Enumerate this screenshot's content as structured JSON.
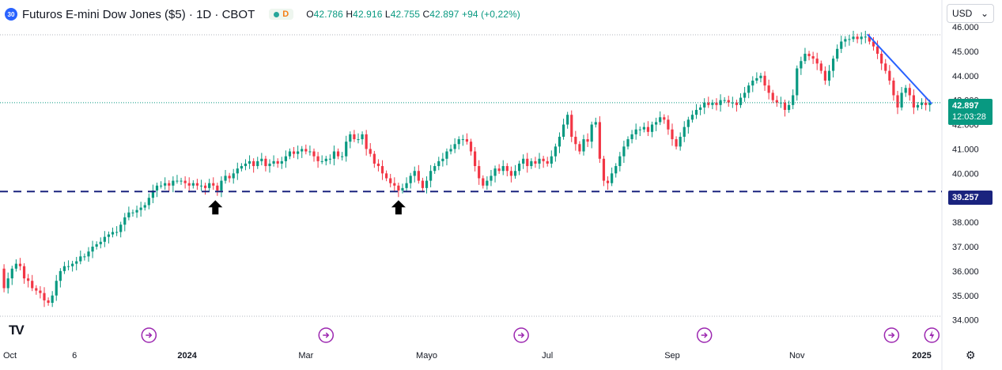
{
  "header": {
    "badge": "30",
    "title": "Futuros E-mini Dow Jones ($5) · 1D · CBOT",
    "session_badge": "D",
    "ohlc": {
      "o_label": "O",
      "o": "42.786",
      "h_label": "H",
      "h": "42.916",
      "l_label": "L",
      "l": "42.755",
      "c_label": "C",
      "c": "42.897",
      "change": "+94 (+0,22%)"
    }
  },
  "currency": {
    "value": "USD",
    "icon": "chevron-down-icon"
  },
  "price_tags": {
    "last_price": "42.897",
    "countdown": "12:03:28",
    "level": "39.257"
  },
  "logo": "TV",
  "colors": {
    "up": "#089981",
    "down": "#f23645",
    "trendline": "#2962ff",
    "support": "#1a237e",
    "event": "#9c27b0",
    "grid_dotted": "#089981"
  },
  "chart_data": {
    "type": "candlestick",
    "title": "Futuros E-mini Dow Jones ($5)",
    "interval": "1D",
    "ylim": [
      33600,
      46000
    ],
    "y_ticks": [
      "46.000",
      "45.000",
      "44.000",
      "43.000",
      "42.000",
      "41.000",
      "40.000",
      "39.000",
      "38.000",
      "37.000",
      "36.000",
      "35.000",
      "34.000"
    ],
    "x_labels": [
      {
        "label": "Oct",
        "x": 0
      },
      {
        "label": "6",
        "x": 37
      },
      {
        "label": "2024",
        "x": 93
      },
      {
        "label": "Mar",
        "x": 152
      },
      {
        "label": "Mayo",
        "x": 212
      },
      {
        "label": "Jul",
        "x": 272
      },
      {
        "label": "Sep",
        "x": 334
      },
      {
        "label": "Nov",
        "x": 396
      },
      {
        "label": "2025",
        "x": 458
      }
    ],
    "x_range": [
      0,
      468
    ],
    "last_price": 42897,
    "support_level": 39257,
    "trendline": [
      [
        431,
        45700
      ],
      [
        463,
        42850
      ]
    ],
    "arrows": [
      {
        "x": 107,
        "y": 38900
      },
      {
        "x": 198,
        "y": 38900
      }
    ],
    "event_markers": [
      74,
      162,
      259,
      350,
      443
    ],
    "special_marker": 463,
    "close_path": [
      [
        0,
        36100
      ],
      [
        2,
        35300
      ],
      [
        4,
        35700
      ],
      [
        6,
        36100
      ],
      [
        8,
        36300
      ],
      [
        10,
        36200
      ],
      [
        12,
        35700
      ],
      [
        14,
        35600
      ],
      [
        16,
        35300
      ],
      [
        18,
        35200
      ],
      [
        20,
        35100
      ],
      [
        22,
        34800
      ],
      [
        24,
        34700
      ],
      [
        26,
        35000
      ],
      [
        28,
        35600
      ],
      [
        30,
        36000
      ],
      [
        32,
        36200
      ],
      [
        34,
        36200
      ],
      [
        36,
        36300
      ],
      [
        38,
        36400
      ],
      [
        40,
        36600
      ],
      [
        42,
        36600
      ],
      [
        44,
        36800
      ],
      [
        46,
        37000
      ],
      [
        48,
        37100
      ],
      [
        50,
        37200
      ],
      [
        52,
        37400
      ],
      [
        54,
        37500
      ],
      [
        56,
        37600
      ],
      [
        58,
        37600
      ],
      [
        60,
        37900
      ],
      [
        62,
        38200
      ],
      [
        64,
        38400
      ],
      [
        66,
        38400
      ],
      [
        68,
        38500
      ],
      [
        70,
        38600
      ],
      [
        72,
        38700
      ],
      [
        74,
        39000
      ],
      [
        76,
        39300
      ],
      [
        78,
        39500
      ],
      [
        80,
        39500
      ],
      [
        82,
        39600
      ],
      [
        84,
        39500
      ],
      [
        86,
        39700
      ],
      [
        88,
        39700
      ],
      [
        90,
        39700
      ],
      [
        92,
        39600
      ],
      [
        94,
        39500
      ],
      [
        96,
        39600
      ],
      [
        98,
        39500
      ],
      [
        100,
        39500
      ],
      [
        102,
        39400
      ],
      [
        104,
        39600
      ],
      [
        106,
        39500
      ],
      [
        108,
        39300
      ],
      [
        110,
        39700
      ],
      [
        112,
        39900
      ],
      [
        114,
        39800
      ],
      [
        116,
        40000
      ],
      [
        118,
        40200
      ],
      [
        120,
        40300
      ],
      [
        122,
        40400
      ],
      [
        124,
        40500
      ],
      [
        126,
        40300
      ],
      [
        128,
        40500
      ],
      [
        130,
        40600
      ],
      [
        132,
        40300
      ],
      [
        134,
        40400
      ],
      [
        136,
        40500
      ],
      [
        138,
        40400
      ],
      [
        140,
        40500
      ],
      [
        142,
        40700
      ],
      [
        144,
        40900
      ],
      [
        146,
        40800
      ],
      [
        148,
        40900
      ],
      [
        150,
        41000
      ],
      [
        152,
        40900
      ],
      [
        154,
        40900
      ],
      [
        156,
        40700
      ],
      [
        158,
        40500
      ],
      [
        160,
        40500
      ],
      [
        162,
        40600
      ],
      [
        164,
        40600
      ],
      [
        166,
        40900
      ],
      [
        168,
        40700
      ],
      [
        170,
        40700
      ],
      [
        172,
        41300
      ],
      [
        174,
        41600
      ],
      [
        176,
        41400
      ],
      [
        178,
        41400
      ],
      [
        180,
        41600
      ],
      [
        182,
        41000
      ],
      [
        184,
        40800
      ],
      [
        186,
        40400
      ],
      [
        188,
        40300
      ],
      [
        190,
        40000
      ],
      [
        192,
        39800
      ],
      [
        194,
        39600
      ],
      [
        196,
        39500
      ],
      [
        198,
        39300
      ],
      [
        200,
        39400
      ],
      [
        202,
        39600
      ],
      [
        204,
        39900
      ],
      [
        206,
        40100
      ],
      [
        208,
        39700
      ],
      [
        210,
        39400
      ],
      [
        212,
        39700
      ],
      [
        214,
        40100
      ],
      [
        216,
        40300
      ],
      [
        218,
        40500
      ],
      [
        220,
        40600
      ],
      [
        222,
        40900
      ],
      [
        224,
        41000
      ],
      [
        226,
        41200
      ],
      [
        228,
        41400
      ],
      [
        230,
        41400
      ],
      [
        232,
        41300
      ],
      [
        234,
        40900
      ],
      [
        236,
        40300
      ],
      [
        238,
        39800
      ],
      [
        240,
        39500
      ],
      [
        242,
        39700
      ],
      [
        244,
        39900
      ],
      [
        246,
        40200
      ],
      [
        248,
        40100
      ],
      [
        250,
        40300
      ],
      [
        252,
        40100
      ],
      [
        254,
        39900
      ],
      [
        256,
        40100
      ],
      [
        258,
        40400
      ],
      [
        260,
        40600
      ],
      [
        262,
        40300
      ],
      [
        264,
        40500
      ],
      [
        266,
        40400
      ],
      [
        268,
        40600
      ],
      [
        270,
        40500
      ],
      [
        272,
        40400
      ],
      [
        274,
        40700
      ],
      [
        276,
        41100
      ],
      [
        278,
        41500
      ],
      [
        280,
        42000
      ],
      [
        282,
        42400
      ],
      [
        284,
        41500
      ],
      [
        286,
        41200
      ],
      [
        288,
        40900
      ],
      [
        290,
        41400
      ],
      [
        292,
        41300
      ],
      [
        294,
        42000
      ],
      [
        296,
        42100
      ],
      [
        298,
        40600
      ],
      [
        300,
        39700
      ],
      [
        302,
        39600
      ],
      [
        304,
        40000
      ],
      [
        306,
        40300
      ],
      [
        308,
        40700
      ],
      [
        310,
        41100
      ],
      [
        312,
        41400
      ],
      [
        314,
        41600
      ],
      [
        316,
        41800
      ],
      [
        318,
        41800
      ],
      [
        320,
        41900
      ],
      [
        322,
        41700
      ],
      [
        324,
        42000
      ],
      [
        326,
        42100
      ],
      [
        328,
        42300
      ],
      [
        330,
        42200
      ],
      [
        332,
        41800
      ],
      [
        334,
        41400
      ],
      [
        336,
        41100
      ],
      [
        338,
        41500
      ],
      [
        340,
        41900
      ],
      [
        342,
        42200
      ],
      [
        344,
        42400
      ],
      [
        346,
        42600
      ],
      [
        348,
        42700
      ],
      [
        350,
        42900
      ],
      [
        352,
        42800
      ],
      [
        354,
        42900
      ],
      [
        356,
        42800
      ],
      [
        358,
        43000
      ],
      [
        360,
        43000
      ],
      [
        362,
        42900
      ],
      [
        364,
        42900
      ],
      [
        366,
        42800
      ],
      [
        368,
        43100
      ],
      [
        370,
        43300
      ],
      [
        372,
        43600
      ],
      [
        374,
        43800
      ],
      [
        376,
        43900
      ],
      [
        378,
        44000
      ],
      [
        380,
        43600
      ],
      [
        382,
        43300
      ],
      [
        384,
        43000
      ],
      [
        386,
        42900
      ],
      [
        388,
        42900
      ],
      [
        390,
        42600
      ],
      [
        392,
        42800
      ],
      [
        394,
        43200
      ],
      [
        396,
        44300
      ],
      [
        398,
        44600
      ],
      [
        400,
        44900
      ],
      [
        402,
        44800
      ],
      [
        404,
        44700
      ],
      [
        406,
        44500
      ],
      [
        408,
        44200
      ],
      [
        410,
        43800
      ],
      [
        412,
        44200
      ],
      [
        414,
        44700
      ],
      [
        416,
        45100
      ],
      [
        418,
        45400
      ],
      [
        420,
        45500
      ],
      [
        422,
        45500
      ],
      [
        424,
        45600
      ],
      [
        426,
        45500
      ],
      [
        428,
        45600
      ],
      [
        430,
        45600
      ],
      [
        432,
        45400
      ],
      [
        434,
        45200
      ],
      [
        436,
        44900
      ],
      [
        438,
        44500
      ],
      [
        440,
        44200
      ],
      [
        442,
        43800
      ],
      [
        444,
        43200
      ],
      [
        446,
        42700
      ],
      [
        448,
        43300
      ],
      [
        450,
        43500
      ],
      [
        452,
        43200
      ],
      [
        454,
        42700
      ],
      [
        456,
        42800
      ],
      [
        458,
        42900
      ],
      [
        460,
        42800
      ],
      [
        462,
        42900
      ]
    ]
  }
}
